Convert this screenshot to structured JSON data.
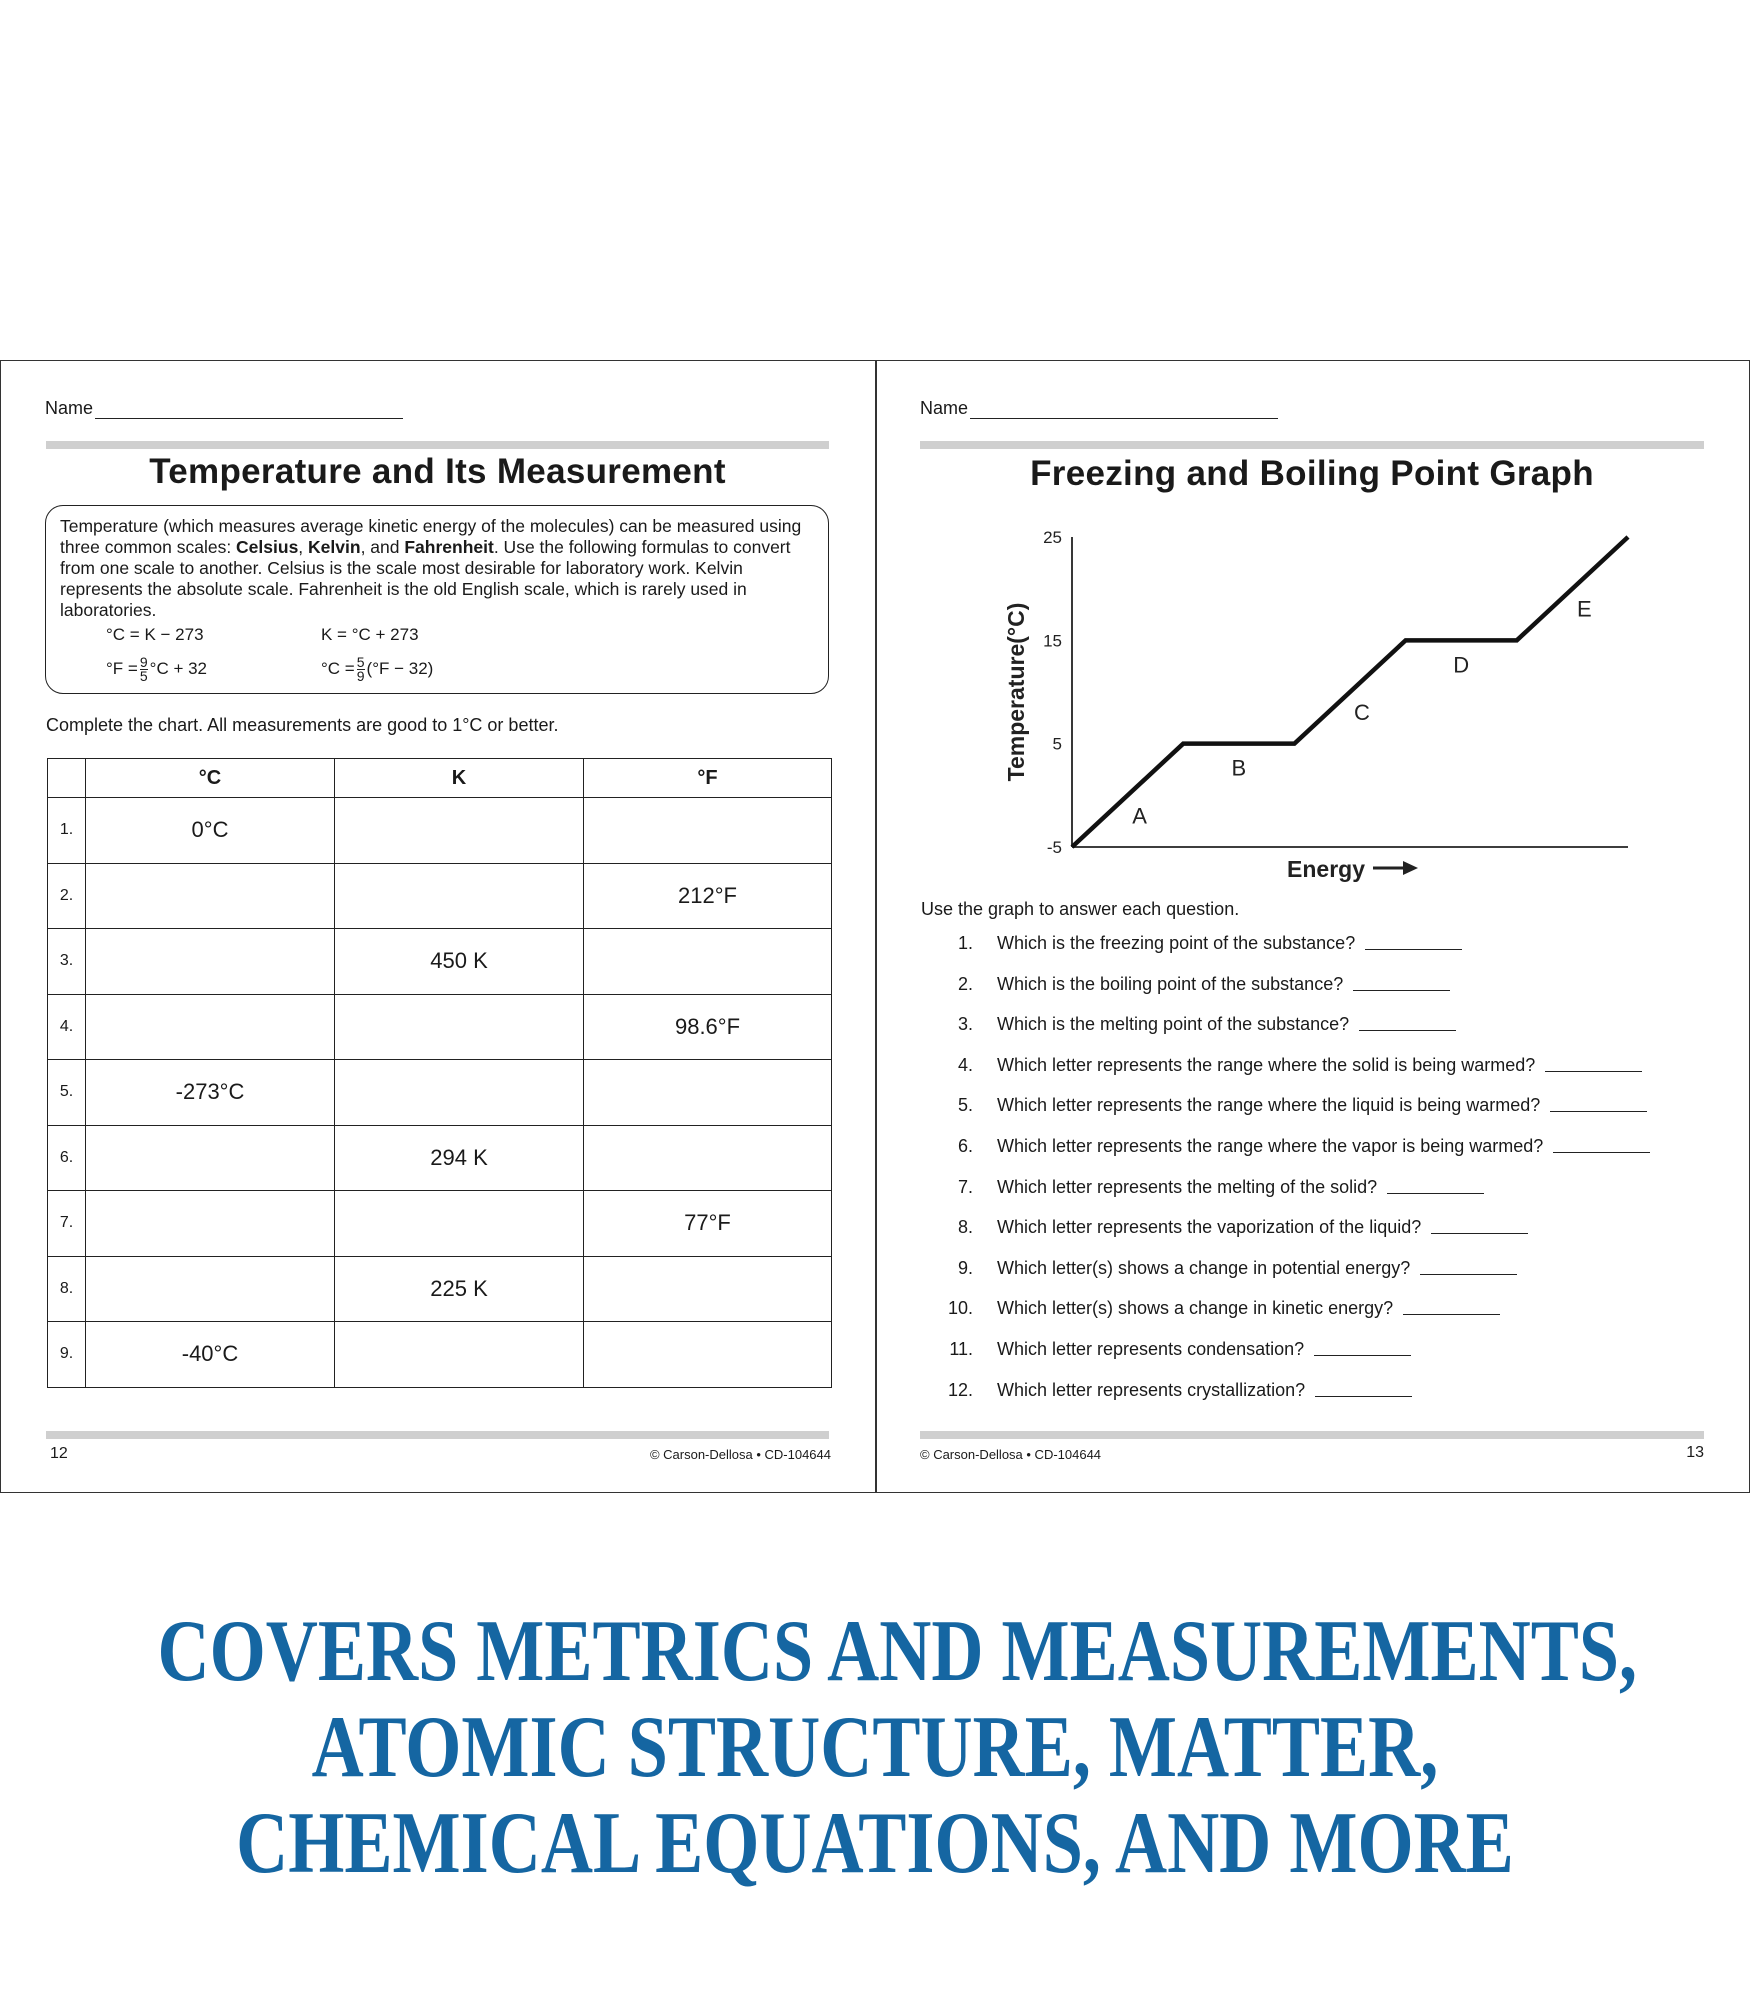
{
  "left_page": {
    "name_label": "Name",
    "title": "Temperature and Its Measurement",
    "intro": {
      "part1": "Temperature (which measures average kinetic energy of the molecules) can be measured using three common scales: ",
      "celsius": "Celsius",
      "sep1": ", ",
      "kelvin": "Kelvin",
      "sep2": ", and ",
      "fahrenheit": "Fahrenheit",
      "part2": ". Use the following formulas to convert from one scale to another. Celsius is the scale most desirable for laboratory work. Kelvin represents the absolute scale. Fahrenheit is the old English scale, which is rarely used in laboratories."
    },
    "formulas": {
      "c_from_k": "°C = K − 273",
      "k_from_c": "K = °C + 273",
      "f_from_c_pre": "°F =",
      "f_from_c_num": "9",
      "f_from_c_den": "5",
      "f_from_c_post": "°C + 32",
      "c_from_f_pre": "°C =",
      "c_from_f_num": "5",
      "c_from_f_den": "9",
      "c_from_f_post": "(°F − 32)"
    },
    "instruction": "Complete the chart. All measurements are good to 1°C or better.",
    "table": {
      "headers": [
        "",
        "°C",
        "K",
        "°F"
      ],
      "rows": [
        [
          "1.",
          "0°C",
          "",
          ""
        ],
        [
          "2.",
          "",
          "",
          "212°F"
        ],
        [
          "3.",
          "",
          "450 K",
          ""
        ],
        [
          "4.",
          "",
          "",
          "98.6°F"
        ],
        [
          "5.",
          "-273°C",
          "",
          ""
        ],
        [
          "6.",
          "",
          "294 K",
          ""
        ],
        [
          "7.",
          "",
          "",
          "77°F"
        ],
        [
          "8.",
          "",
          "225 K",
          ""
        ],
        [
          "9.",
          "-40°C",
          "",
          ""
        ]
      ]
    },
    "page_number": "12",
    "copyright": "© Carson-Dellosa • CD-104644"
  },
  "right_page": {
    "name_label": "Name",
    "title": "Freezing and Boiling Point Graph",
    "instruction": "Use the graph to answer each question.",
    "questions": [
      {
        "n": "1.",
        "text": "Which is the freezing point of the substance?"
      },
      {
        "n": "2.",
        "text": "Which is the boiling point of the substance?"
      },
      {
        "n": "3.",
        "text": "Which is the melting point of the substance?"
      },
      {
        "n": "4.",
        "text": "Which letter represents the range where the solid is being warmed?"
      },
      {
        "n": "5.",
        "text": "Which letter represents the range where the liquid is being warmed?"
      },
      {
        "n": "6.",
        "text": "Which letter represents the range where the vapor is being warmed?"
      },
      {
        "n": "7.",
        "text": "Which letter represents the melting of the solid?"
      },
      {
        "n": "8.",
        "text": "Which letter represents the vaporization of the liquid?"
      },
      {
        "n": "9.",
        "text": "Which letter(s) shows a change in potential energy?"
      },
      {
        "n": "10.",
        "text": "Which letter(s) shows a change in kinetic energy?"
      },
      {
        "n": "11.",
        "text": "Which letter represents condensation?"
      },
      {
        "n": "12.",
        "text": "Which letter represents crystallization?"
      }
    ],
    "copyright": "© Carson-Dellosa • CD-104644",
    "page_number": "13"
  },
  "chart_data": {
    "type": "line",
    "title": "",
    "xlabel": "Energy",
    "xlabel_arrow": "→",
    "ylabel": "Temperature(°C)",
    "ylim": [
      -5,
      25
    ],
    "yticks": [
      "25",
      "15",
      "5",
      "-5"
    ],
    "ytick_values": [
      25,
      15,
      5,
      -5
    ],
    "x": [
      0,
      1,
      2,
      3,
      4,
      5
    ],
    "y": [
      -5,
      5,
      5,
      15,
      15,
      25
    ],
    "grid": false,
    "segment_labels": [
      {
        "label": "A",
        "segment": 0
      },
      {
        "label": "B",
        "segment": 1
      },
      {
        "label": "C",
        "segment": 2
      },
      {
        "label": "D",
        "segment": 3
      },
      {
        "label": "E",
        "segment": 4
      }
    ],
    "line_color": "#111111"
  },
  "promo": {
    "lines": [
      "COVERS METRICS AND MEASUREMENTS,",
      "ATOMIC STRUCTURE, MATTER,",
      "CHEMICAL EQUATIONS, AND MORE"
    ],
    "color": "#1566a2"
  }
}
